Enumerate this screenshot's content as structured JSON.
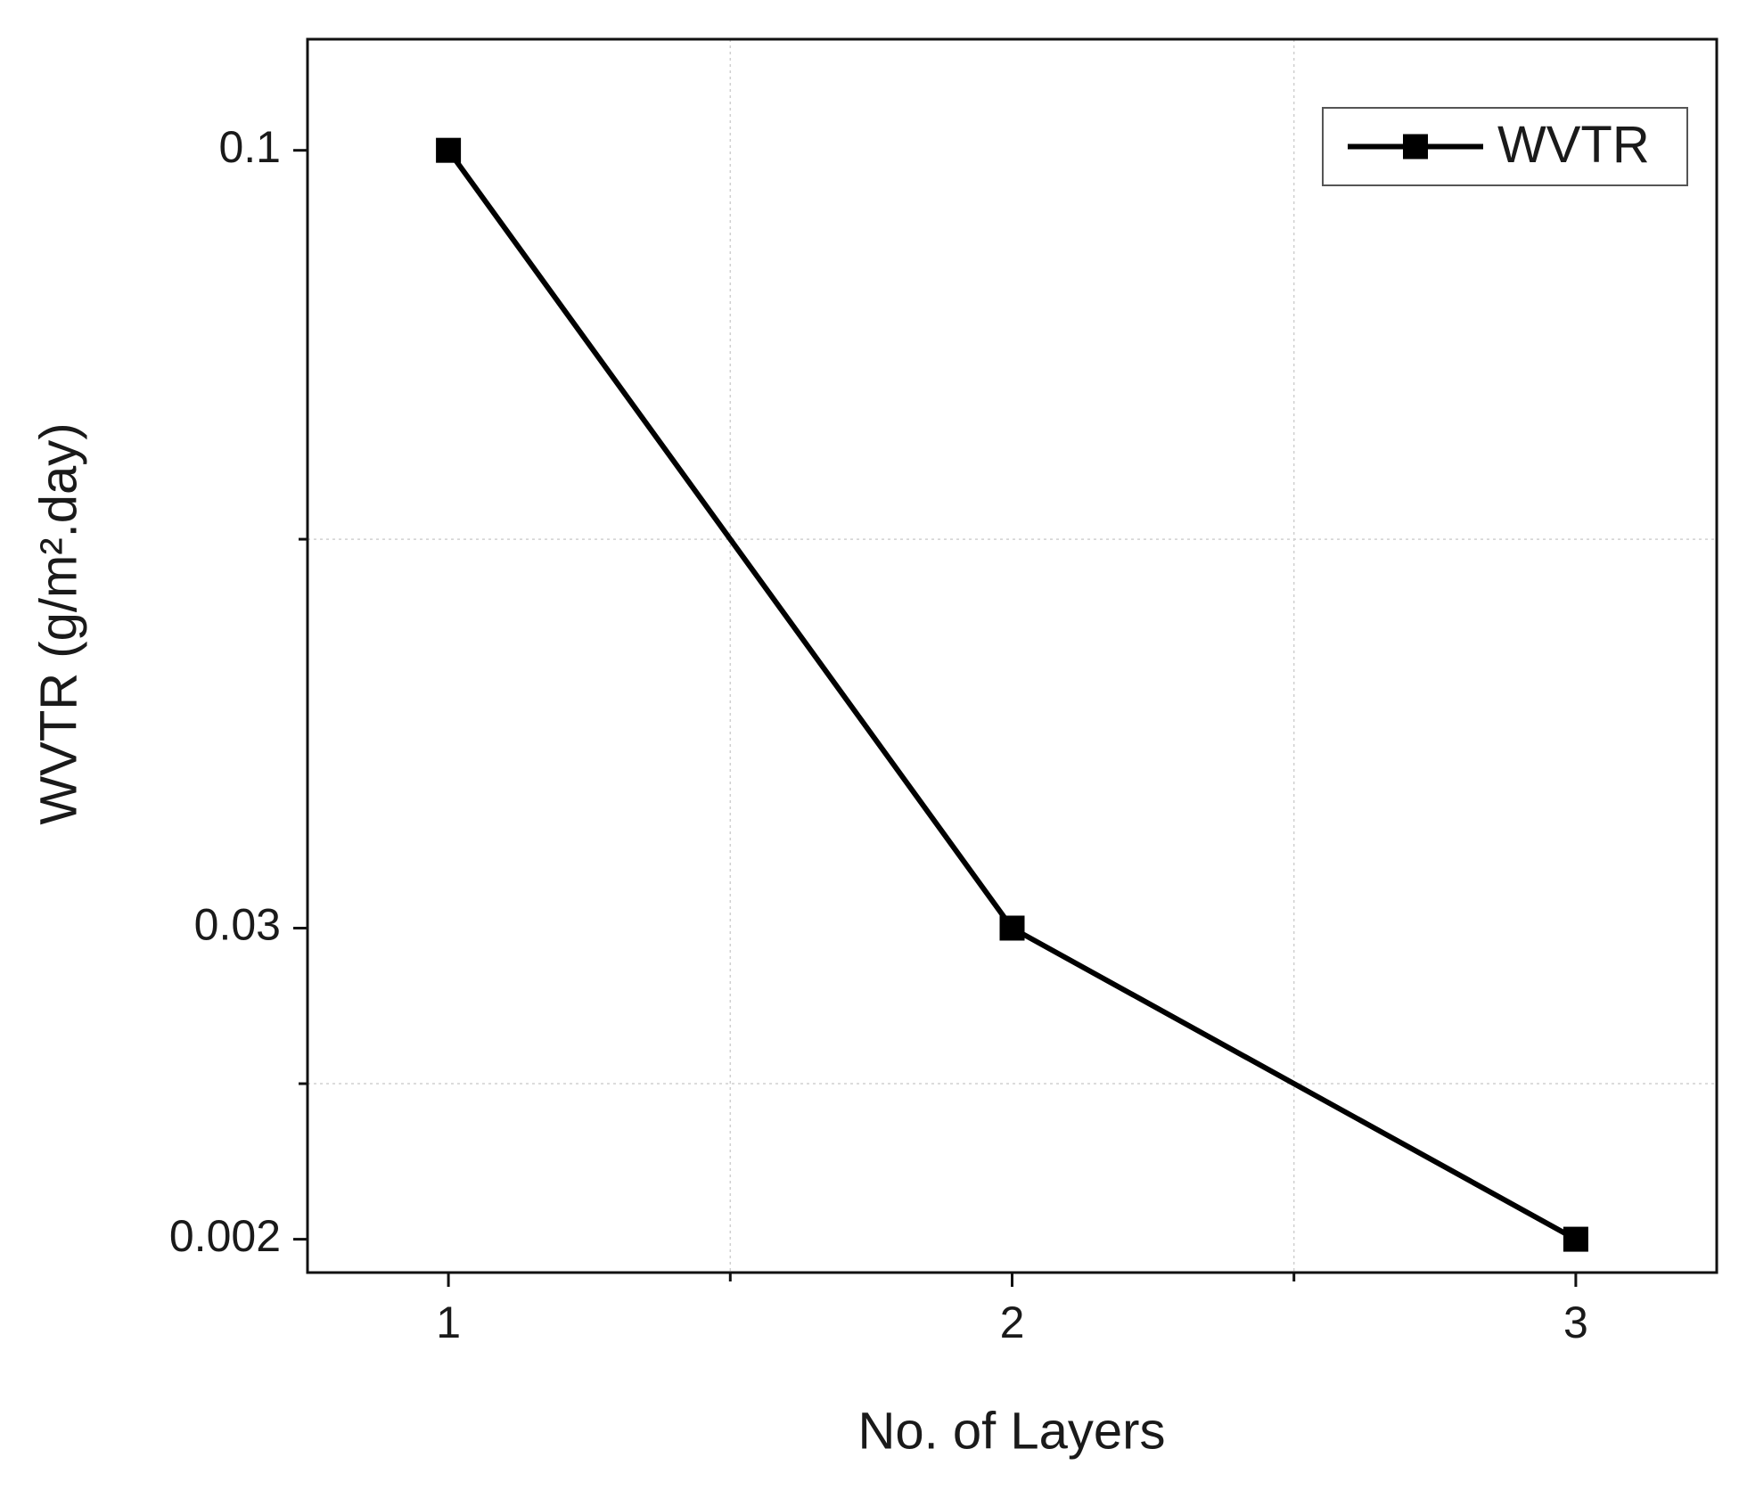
{
  "chart_data": {
    "type": "line",
    "x_label": "No. of Layers",
    "y_label": "WVTR (g/m².day)",
    "x": [
      1,
      2,
      3
    ],
    "series": [
      {
        "name": "WVTR",
        "color": "#000000",
        "values": [
          0.1,
          0.03,
          0.002
        ]
      }
    ],
    "xlim": [
      0.75,
      3.25
    ],
    "xticks": [
      1,
      2,
      3
    ],
    "xminorticks": [
      1.5,
      2.5
    ],
    "ylim": [
      -0.001,
      0.11
    ],
    "yticks": [
      0.002,
      0.03,
      0.1
    ],
    "yminorticks": [
      0.016,
      0.065
    ],
    "grid": true,
    "legend": "upper right"
  }
}
